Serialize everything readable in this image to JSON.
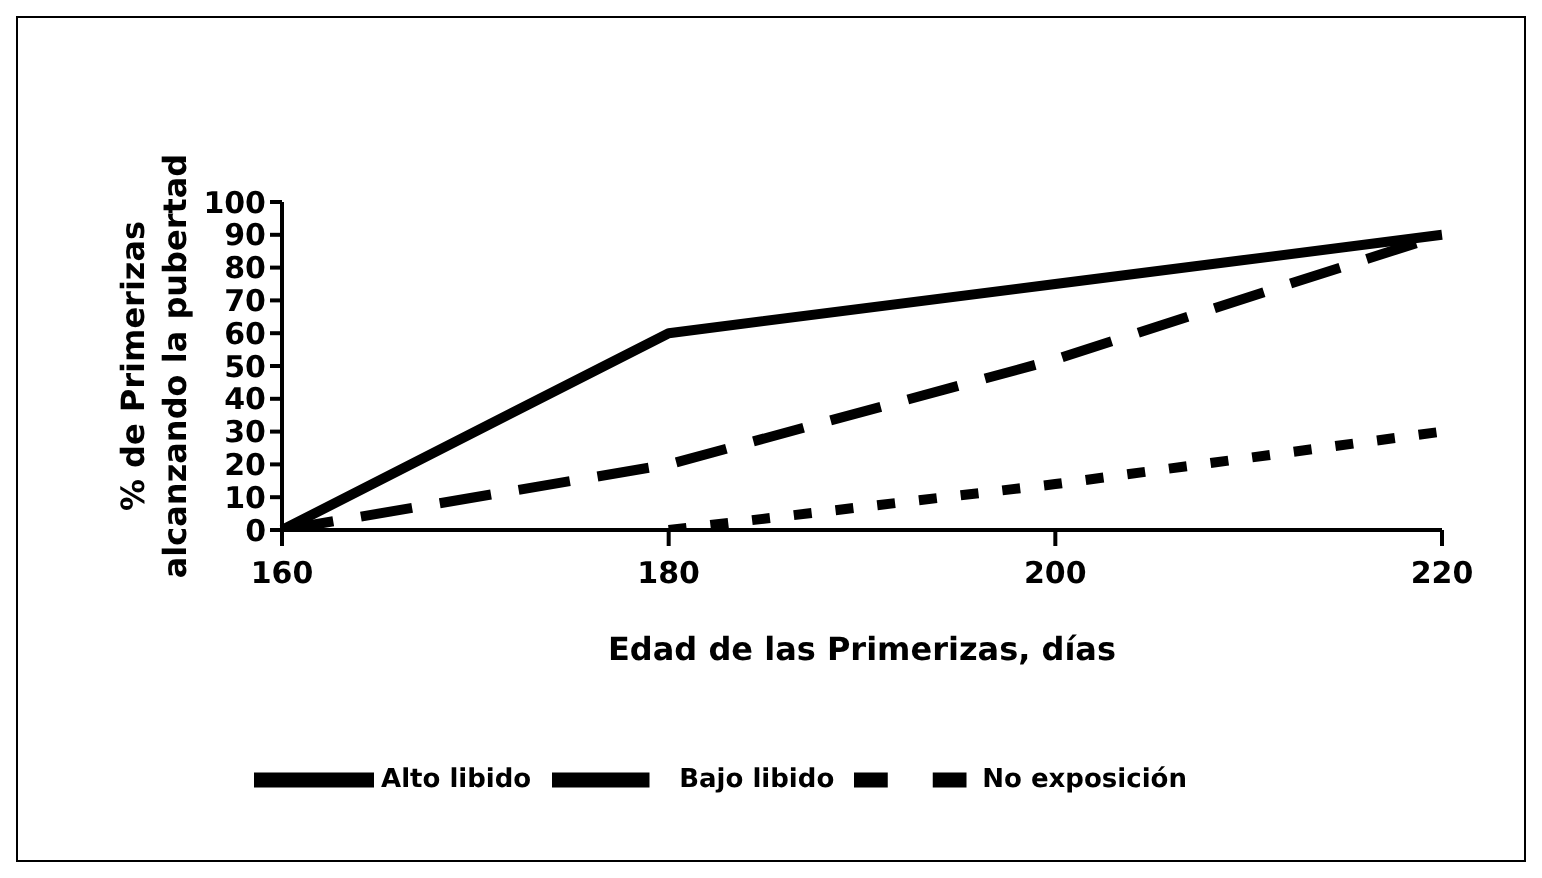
{
  "chart_data": {
    "type": "line",
    "xlabel": "Edad de las Primerizas, días",
    "ylabel": "% de Primerizas\nalcanzando la pubertad",
    "categories": [
      "160",
      "180",
      "200",
      "220"
    ],
    "series": [
      {
        "name": "Alto libido",
        "color": "#000000",
        "line_style": "solid",
        "values": [
          0,
          60,
          75,
          90
        ]
      },
      {
        "name": "Bajo libido",
        "color": "#000000",
        "line_style": "dashed",
        "values": [
          0,
          20,
          52,
          90
        ]
      },
      {
        "name": "No exposición",
        "color": "#000000",
        "line_style": "dotted",
        "values": [
          null,
          0,
          14,
          30
        ]
      }
    ],
    "ylim": [
      0,
      100
    ],
    "yticks": [
      0,
      10,
      20,
      30,
      40,
      50,
      60,
      70,
      80,
      90,
      100
    ],
    "grid": false,
    "legend": "bottom",
    "marker": "none"
  }
}
